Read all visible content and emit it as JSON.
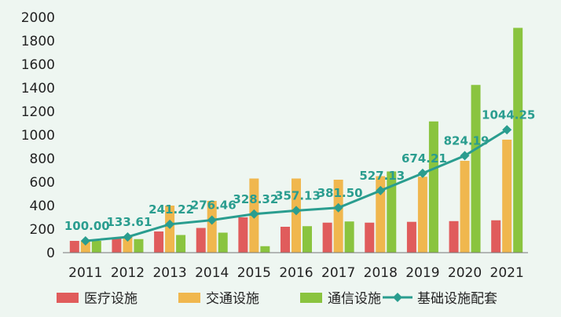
{
  "chart_data": {
    "type": "bar",
    "title": "",
    "xlabel": "",
    "ylabel": "",
    "categories": [
      "2011",
      "2012",
      "2013",
      "2014",
      "2015",
      "2016",
      "2017",
      "2018",
      "2019",
      "2020",
      "2021"
    ],
    "ylim": [
      0,
      2000
    ],
    "yticks": [
      0,
      200,
      400,
      600,
      800,
      1000,
      1200,
      1400,
      1600,
      1800,
      2000
    ],
    "grid": false,
    "legend_position": "bottom",
    "series": [
      {
        "name": "医疗设施",
        "type": "bar",
        "color": "#e05c5c",
        "values": [
          100,
          120,
          180,
          210,
          300,
          220,
          255,
          255,
          262,
          268,
          275
        ]
      },
      {
        "name": "交通设施",
        "type": "bar",
        "color": "#f0b74e",
        "values": [
          100,
          135,
          400,
          440,
          630,
          630,
          620,
          650,
          645,
          780,
          960
        ]
      },
      {
        "name": "通信设施",
        "type": "bar",
        "color": "#8ac43f",
        "values": [
          100,
          115,
          150,
          170,
          55,
          225,
          265,
          690,
          1115,
          1425,
          1910
        ]
      },
      {
        "name": "基础设施配套",
        "type": "line",
        "color": "#2a9d8f",
        "values": [
          100.0,
          133.61,
          241.22,
          276.46,
          328.32,
          357.13,
          381.5,
          527.13,
          674.21,
          824.19,
          1044.25
        ],
        "labels": [
          "100.00",
          "133.61",
          "241.22",
          "276.46",
          "328.32",
          "357.13",
          "381.50",
          "527.13",
          "674.21",
          "824.19",
          "1044.25"
        ]
      }
    ]
  }
}
